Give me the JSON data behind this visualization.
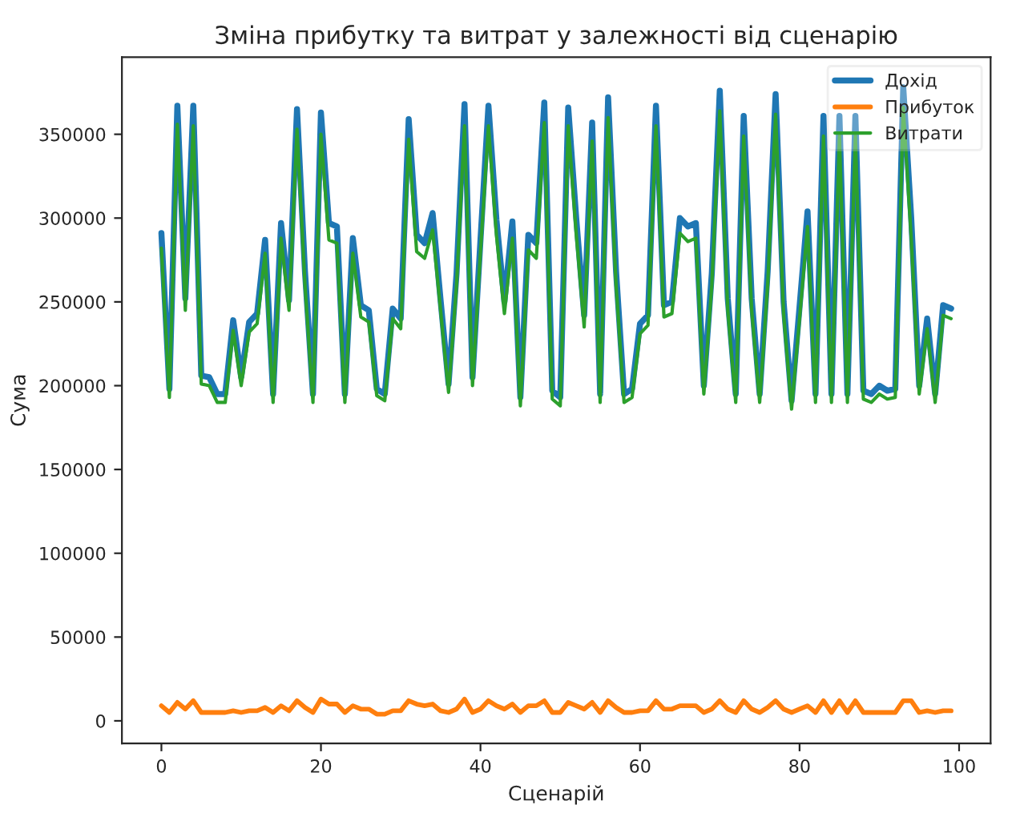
{
  "chart_data": {
    "type": "line",
    "title": "Зміна прибутку та витрат у залежності від сценарію",
    "xlabel": "Сценарій",
    "ylabel": "Сума",
    "x": [
      0,
      1,
      2,
      3,
      4,
      5,
      6,
      7,
      8,
      9,
      10,
      11,
      12,
      13,
      14,
      15,
      16,
      17,
      18,
      19,
      20,
      21,
      22,
      23,
      24,
      25,
      26,
      27,
      28,
      29,
      30,
      31,
      32,
      33,
      34,
      35,
      36,
      37,
      38,
      39,
      40,
      41,
      42,
      43,
      44,
      45,
      46,
      47,
      48,
      49,
      50,
      51,
      52,
      53,
      54,
      55,
      56,
      57,
      58,
      59,
      60,
      61,
      62,
      63,
      64,
      65,
      66,
      67,
      68,
      69,
      70,
      71,
      72,
      73,
      74,
      75,
      76,
      77,
      78,
      79,
      80,
      81,
      82,
      83,
      84,
      85,
      86,
      87,
      88,
      89,
      90,
      91,
      92,
      93,
      94,
      95,
      96,
      97,
      98,
      99
    ],
    "series": [
      {
        "name": "Дохід",
        "color": "#1f77b4",
        "values": [
          291000,
          198000,
          367000,
          252000,
          367000,
          206000,
          205000,
          195000,
          195000,
          239000,
          205000,
          238000,
          243000,
          287000,
          195000,
          297000,
          251000,
          365000,
          268000,
          195000,
          363000,
          297000,
          295000,
          195000,
          288000,
          248000,
          245000,
          198000,
          195000,
          246000,
          240000,
          359000,
          290000,
          285000,
          303000,
          251000,
          201000,
          267000,
          368000,
          205000,
          287000,
          367000,
          299000,
          250000,
          298000,
          193000,
          290000,
          285000,
          369000,
          197000,
          193000,
          366000,
          300000,
          242000,
          357000,
          195000,
          372000,
          268000,
          195000,
          198000,
          237000,
          242000,
          367000,
          248000,
          250000,
          300000,
          295000,
          297000,
          200000,
          267000,
          376000,
          252000,
          195000,
          361000,
          252000,
          195000,
          268000,
          374000,
          250000,
          191000,
          247000,
          304000,
          195000,
          361000,
          195000,
          361000,
          195000,
          361000,
          197000,
          195000,
          200000,
          197000,
          198000,
          378000,
          300000,
          200000,
          240000,
          195000,
          248000,
          246000
        ]
      },
      {
        "name": "Прибуток",
        "color": "#ff7f0e",
        "values": [
          9000,
          5000,
          11000,
          7000,
          12000,
          5000,
          5000,
          5000,
          5000,
          6000,
          5000,
          6000,
          6000,
          8000,
          5000,
          9000,
          6000,
          12000,
          8000,
          5000,
          13000,
          10000,
          10000,
          5000,
          9000,
          7000,
          7000,
          4000,
          4000,
          6000,
          6000,
          12000,
          10000,
          9000,
          10000,
          6000,
          5000,
          7000,
          13000,
          5000,
          7000,
          12000,
          9000,
          7000,
          10000,
          5000,
          9000,
          9000,
          12000,
          5000,
          5000,
          11000,
          9000,
          7000,
          11000,
          5000,
          12000,
          8000,
          5000,
          5000,
          6000,
          6000,
          12000,
          7000,
          7000,
          9000,
          9000,
          9000,
          5000,
          7000,
          12000,
          7000,
          5000,
          12000,
          7000,
          5000,
          8000,
          12000,
          7000,
          5000,
          7000,
          9000,
          5000,
          12000,
          5000,
          12000,
          5000,
          12000,
          5000,
          5000,
          5000,
          5000,
          5000,
          12000,
          12000,
          5000,
          6000,
          5000,
          6000,
          6000
        ]
      },
      {
        "name": "Витрати",
        "color": "#2ca02c",
        "values": [
          282000,
          193000,
          356000,
          245000,
          355000,
          201000,
          200000,
          190000,
          190000,
          233000,
          200000,
          232000,
          237000,
          279000,
          190000,
          288000,
          245000,
          353000,
          260000,
          190000,
          350000,
          287000,
          285000,
          190000,
          279000,
          241000,
          238000,
          194000,
          191000,
          240000,
          234000,
          347000,
          280000,
          276000,
          293000,
          245000,
          196000,
          260000,
          355000,
          200000,
          280000,
          355000,
          290000,
          243000,
          288000,
          188000,
          281000,
          276000,
          357000,
          192000,
          188000,
          355000,
          291000,
          235000,
          346000,
          190000,
          360000,
          260000,
          190000,
          193000,
          231000,
          236000,
          355000,
          241000,
          243000,
          291000,
          286000,
          288000,
          195000,
          260000,
          364000,
          245000,
          190000,
          349000,
          245000,
          190000,
          260000,
          362000,
          243000,
          186000,
          240000,
          295000,
          190000,
          349000,
          190000,
          349000,
          190000,
          349000,
          192000,
          190000,
          195000,
          192000,
          193000,
          366000,
          288000,
          195000,
          234000,
          190000,
          242000,
          240000
        ]
      }
    ],
    "xlim": [
      -4.95,
      103.95
    ],
    "xticks": [
      0,
      20,
      40,
      60,
      80,
      100
    ],
    "ylim": [
      -13500,
      396000
    ],
    "yticks": [
      0,
      50000,
      100000,
      150000,
      200000,
      250000,
      300000,
      350000
    ],
    "grid": false,
    "legend": "top right"
  }
}
